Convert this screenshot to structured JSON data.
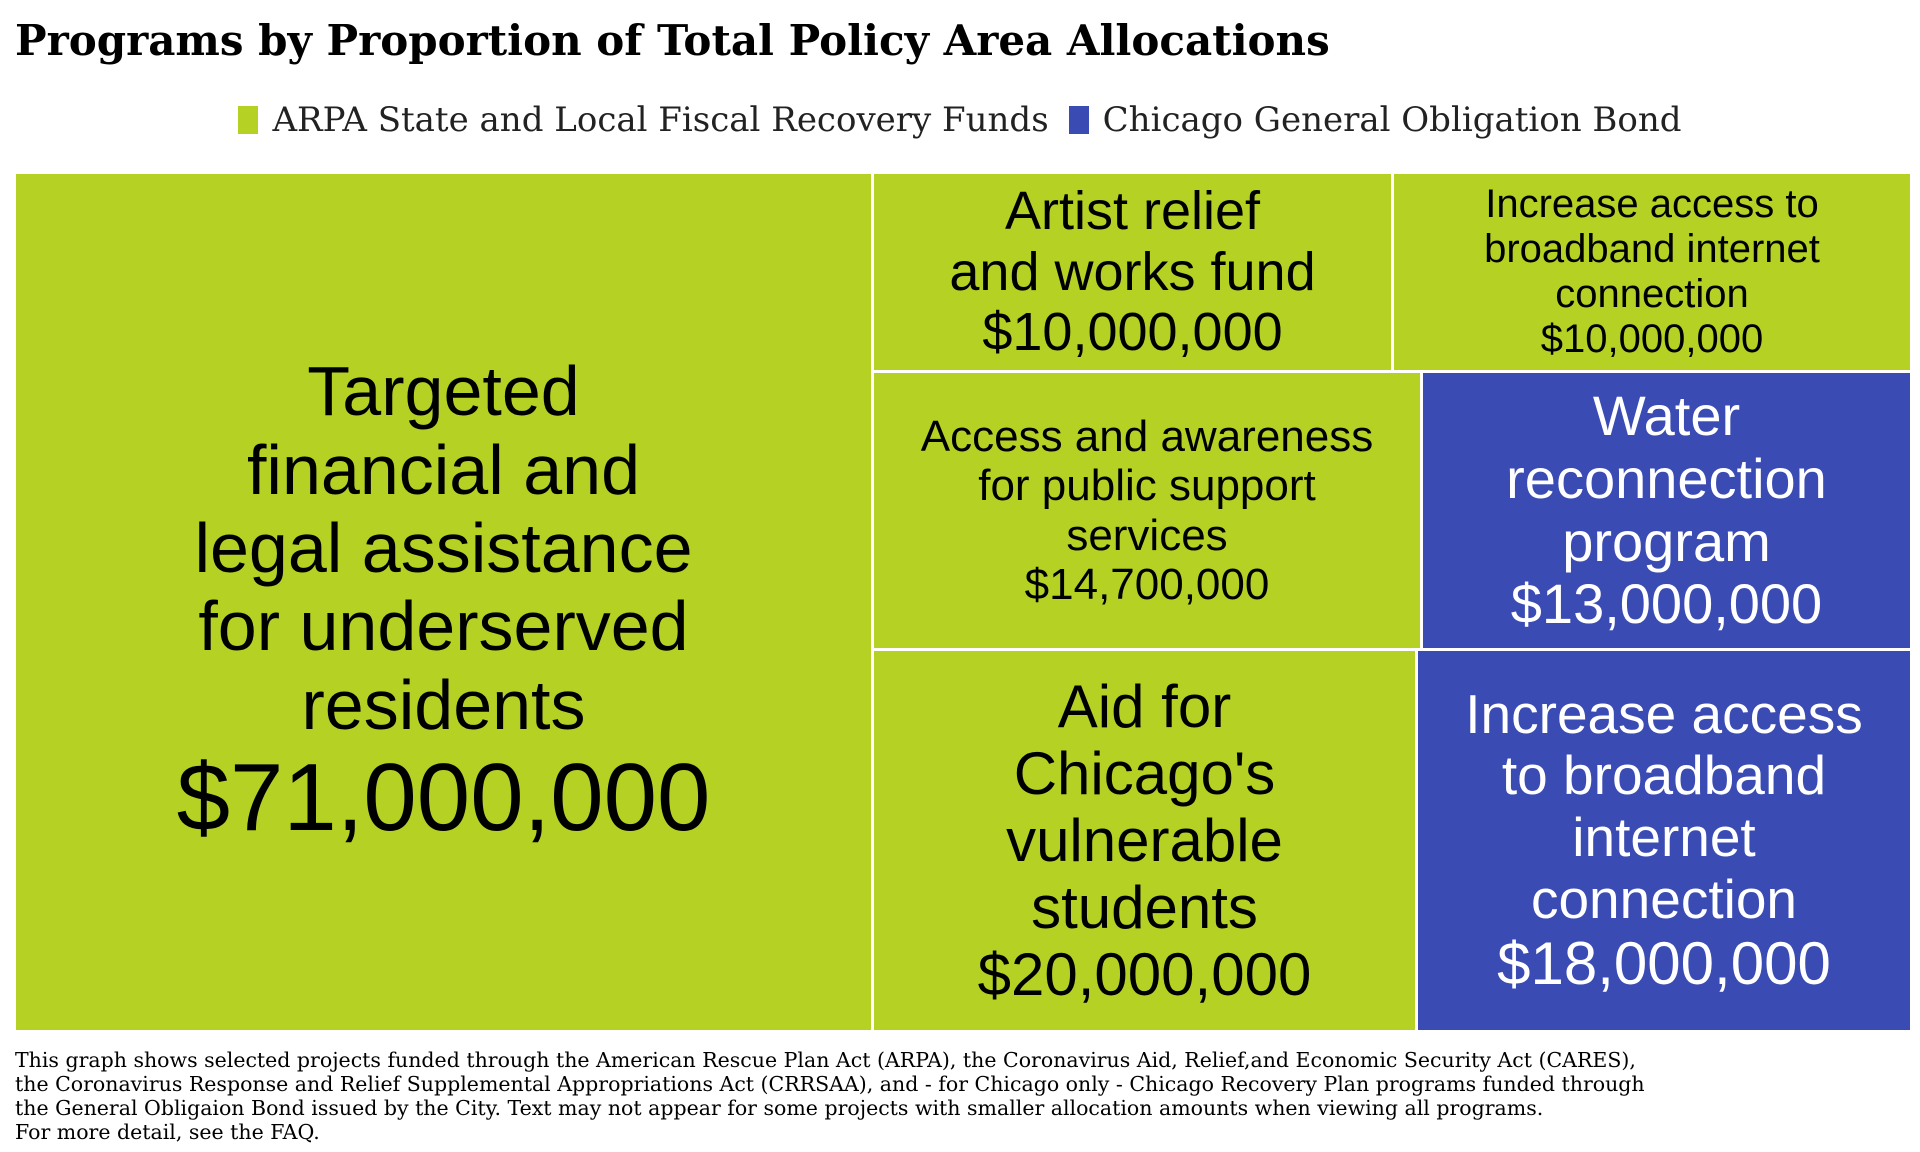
{
  "title": "Programs by Proportion of Total Policy Area Allocations",
  "legend": [
    {
      "label": "ARPA State and Local Fiscal Recovery Funds",
      "color": "#b5d124"
    },
    {
      "label": "Chicago General Obligation Bond",
      "color": "#3a4bb3"
    }
  ],
  "chart_data": {
    "type": "treemap",
    "series": [
      {
        "name": "ARPA State and Local Fiscal Recovery Funds",
        "color": "#b5d124"
      },
      {
        "name": "Chicago General Obligation Bond",
        "color": "#3a4bb3"
      }
    ],
    "items": [
      {
        "label": "Targeted\nfinancial and\nlegal assistance\nfor underserved\nresidents",
        "value": 71000000,
        "value_text": "$71,000,000",
        "series": "ARPA State and Local Fiscal Recovery Funds"
      },
      {
        "label": "Artist relief\nand works fund",
        "value": 10000000,
        "value_text": "$10,000,000",
        "series": "ARPA State and Local Fiscal Recovery Funds"
      },
      {
        "label": "Increase access to\nbroadband internet\nconnection",
        "value": 10000000,
        "value_text": "$10,000,000",
        "series": "ARPA State and Local Fiscal Recovery Funds"
      },
      {
        "label": "Access and awareness\nfor public support\nservices",
        "value": 14700000,
        "value_text": "$14,700,000",
        "series": "ARPA State and Local Fiscal Recovery Funds"
      },
      {
        "label": "Water\nreconnection\nprogram",
        "value": 13000000,
        "value_text": "$13,000,000",
        "series": "Chicago General Obligation Bond"
      },
      {
        "label": "Aid for\nChicago's\nvulnerable\nstudents",
        "value": 20000000,
        "value_text": "$20,000,000",
        "series": "ARPA State and Local Fiscal Recovery Funds"
      },
      {
        "label": "Increase access\nto broadband\ninternet\nconnection",
        "value": 18000000,
        "value_text": "$18,000,000",
        "series": "Chicago General Obligation Bond"
      }
    ]
  },
  "footnote": [
    "This graph shows selected projects funded through the American Rescue Plan Act (ARPA), the Coronavirus Aid, Relief,and Economic Security Act (CARES),",
    "the Coronavirus Response and Relief Supplemental Appropriations Act (CRRSAA), and - for Chicago only - Chicago Recovery Plan programs funded through",
    "the General Obligaion Bond issued by the City. Text may not appear for some projects with smaller allocation amounts when viewing all programs.",
    "For more detail, see the FAQ."
  ]
}
